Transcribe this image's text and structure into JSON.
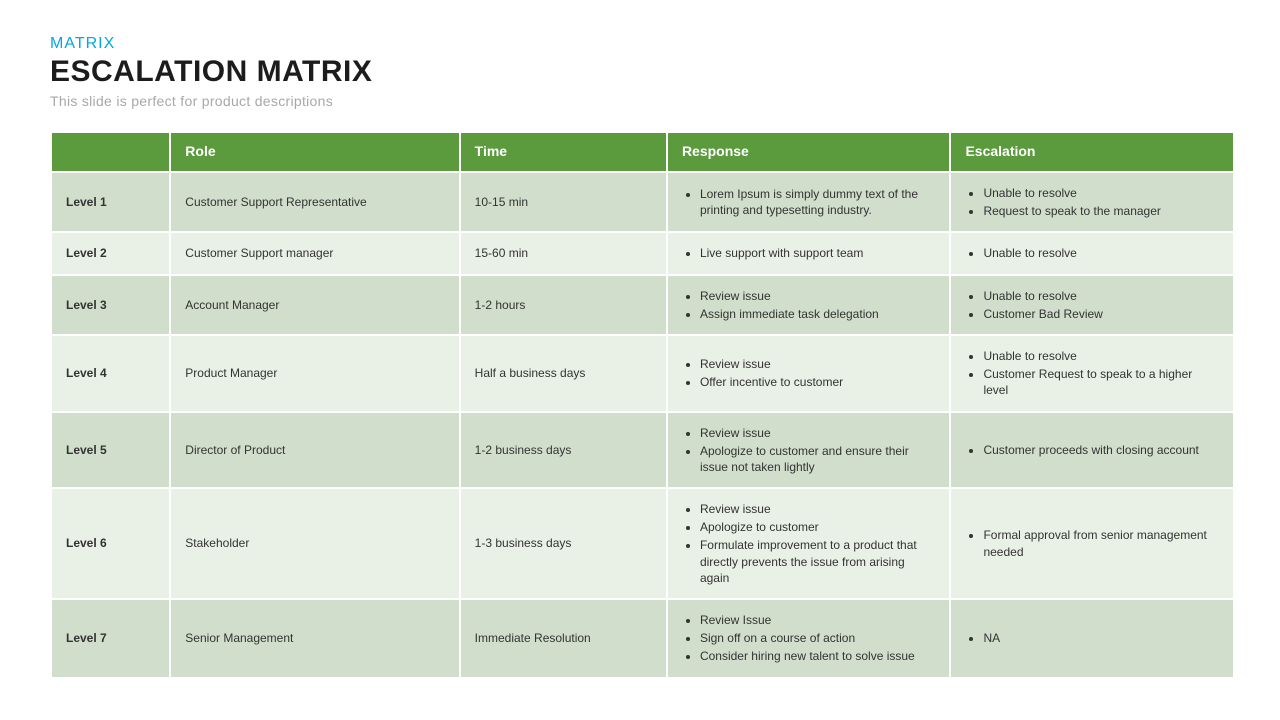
{
  "eyebrow": {
    "text": "MATRIX",
    "color": "#00a9e0"
  },
  "title": {
    "text": "ESCALATION MATRIX",
    "color": "#1c1c1c"
  },
  "subtitle": {
    "text": "This slide is perfect for product descriptions",
    "color": "#a8a8a8"
  },
  "table": {
    "header_bg": "#5b9b3d",
    "header_text_color": "#ffffff",
    "row_bg_odd": "#d0decb",
    "row_bg_even": "#e9f0e5",
    "text_color": "#333333",
    "col_widths_pct": [
      10,
      24.5,
      17.5,
      24,
      24
    ],
    "columns": [
      "",
      "Role",
      "Time",
      "Response",
      "Escalation"
    ],
    "rows": [
      {
        "level": "Level 1",
        "role": "Customer Support Representative",
        "time": "10-15 min",
        "response": [
          "Lorem Ipsum is simply dummy text of the printing and typesetting industry."
        ],
        "escalation": [
          "Unable to resolve",
          "Request to speak to the manager"
        ]
      },
      {
        "level": "Level 2",
        "role": "Customer Support manager",
        "time": "15-60 min",
        "response": [
          "Live support with support team"
        ],
        "escalation": [
          "Unable to resolve"
        ]
      },
      {
        "level": "Level 3",
        "role": "Account Manager",
        "time": "1-2 hours",
        "response": [
          "Review issue",
          "Assign immediate task delegation"
        ],
        "escalation": [
          "Unable to resolve",
          "Customer Bad Review"
        ]
      },
      {
        "level": "Level 4",
        "role": "Product Manager",
        "time": "Half a business days",
        "response": [
          "Review issue",
          "Offer incentive to customer"
        ],
        "escalation": [
          "Unable to resolve",
          "Customer Request to speak to a higher level"
        ]
      },
      {
        "level": "Level 5",
        "role": "Director of Product",
        "time": "1-2 business days",
        "response": [
          "Review issue",
          "Apologize to customer and ensure their issue not taken lightly"
        ],
        "escalation": [
          "Customer proceeds with closing account"
        ]
      },
      {
        "level": "Level 6",
        "role": "Stakeholder",
        "time": "1-3 business days",
        "response": [
          "Review issue",
          "Apologize to customer",
          "Formulate improvement to a product that directly prevents the issue from arising again"
        ],
        "escalation": [
          "Formal approval from senior management needed"
        ]
      },
      {
        "level": "Level 7",
        "role": "Senior Management",
        "time": "Immediate Resolution",
        "response": [
          "Review Issue",
          "Sign off on a course of action",
          "Consider hiring new talent to solve issue"
        ],
        "escalation": [
          "NA"
        ]
      }
    ]
  }
}
